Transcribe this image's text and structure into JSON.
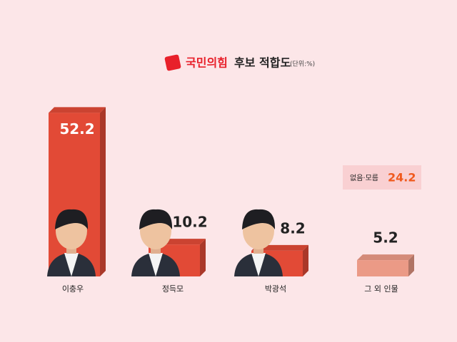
{
  "chart_data": {
    "type": "bar",
    "title_party": "국민의힘",
    "title": "후보 적합도",
    "unit": "(단위:%)",
    "categories": [
      "이충우",
      "정득모",
      "박광석",
      "그 외 인물"
    ],
    "values": [
      52.2,
      10.2,
      8.2,
      5.2
    ],
    "colors": [
      "#e24a36",
      "#e24a36",
      "#e24a36",
      "#eb9a86"
    ],
    "extra": {
      "label": "없음·모름",
      "value": 24.2
    }
  }
}
